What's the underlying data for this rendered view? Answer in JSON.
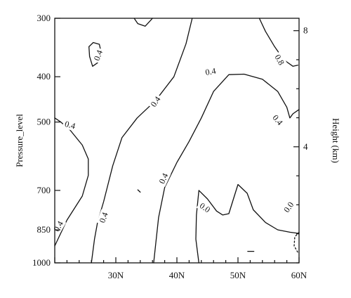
{
  "chart_data": {
    "type": "contour",
    "xlabel": "",
    "ylabel": "Pressure_level",
    "y2label": "Height (km)",
    "x_ticks": [
      "30N",
      "40N",
      "50N",
      "60N"
    ],
    "x_tick_values": [
      30,
      40,
      50,
      60
    ],
    "x_range": [
      20,
      60
    ],
    "y_ticks": [
      "300",
      "400",
      "500",
      "700",
      "850",
      "1000"
    ],
    "y_tick_values": [
      300,
      400,
      500,
      700,
      850,
      1000
    ],
    "y_range": [
      1000,
      300
    ],
    "y2_ticks": [
      "4",
      "8"
    ],
    "contour_levels": [
      "0.4",
      "0.8",
      "0.0"
    ],
    "contours": [
      {
        "name": "c-west-04",
        "level": "0.4",
        "points": [
          [
            20,
            490
          ],
          [
            21,
            500
          ],
          [
            22.5,
            520
          ],
          [
            24.5,
            560
          ],
          [
            25.5,
            600
          ],
          [
            25.5,
            650
          ],
          [
            24.5,
            720
          ],
          [
            22,
            810
          ],
          [
            20,
            920
          ]
        ]
      },
      {
        "name": "c-loop-04",
        "level": "0.4",
        "points": [
          [
            26.2,
            380
          ],
          [
            25.7,
            362
          ],
          [
            25.6,
            345
          ],
          [
            26.3,
            338
          ],
          [
            27.3,
            341
          ],
          [
            27.6,
            355
          ],
          [
            27.2,
            372
          ],
          [
            26.2,
            380
          ]
        ]
      },
      {
        "name": "c-top-left-04",
        "level": "0.4",
        "points": [
          [
            33,
            300
          ],
          [
            33.6,
            308
          ],
          [
            34.8,
            312
          ],
          [
            35.8,
            302
          ],
          [
            36,
            300
          ]
        ]
      },
      {
        "name": "c-west-mid-04",
        "level": "0.4",
        "points": [
          [
            26,
            1000
          ],
          [
            26.5,
            890
          ],
          [
            27,
            820
          ],
          [
            28,
            740
          ],
          [
            29.5,
            620
          ],
          [
            31,
            540
          ],
          [
            33.5,
            490
          ],
          [
            36.5,
            450
          ],
          [
            39.5,
            400
          ],
          [
            41.5,
            340
          ],
          [
            42.5,
            300
          ]
        ]
      },
      {
        "name": "c-arch-04",
        "level": "0.4",
        "points": [
          [
            36.2,
            1000
          ],
          [
            36.5,
            920
          ],
          [
            37,
            800
          ],
          [
            38,
            690
          ],
          [
            40,
            610
          ],
          [
            42,
            550
          ],
          [
            44,
            490
          ],
          [
            46,
            430
          ],
          [
            48.5,
            396
          ],
          [
            51,
            395
          ],
          [
            54,
            405
          ],
          [
            56.5,
            430
          ],
          [
            58,
            465
          ],
          [
            58.5,
            490
          ],
          [
            59,
            480
          ],
          [
            60,
            470
          ]
        ]
      },
      {
        "name": "c-right-08",
        "level": "0.8",
        "points": [
          [
            53.5,
            300
          ],
          [
            54.5,
            320
          ],
          [
            56,
            345
          ],
          [
            57.5,
            368
          ],
          [
            59,
            380
          ],
          [
            59.8,
            378
          ]
        ]
      },
      {
        "name": "c-mid-00",
        "level": "0.0",
        "points": [
          [
            43.6,
            1000
          ],
          [
            43.1,
            890
          ],
          [
            43.2,
            790
          ],
          [
            43.6,
            700
          ],
          [
            45,
            730
          ],
          [
            46.5,
            775
          ],
          [
            47.5,
            790
          ],
          [
            48.5,
            785
          ],
          [
            49.4,
            720
          ],
          [
            50,
            680
          ],
          [
            51.5,
            710
          ],
          [
            52.5,
            770
          ],
          [
            54.5,
            820
          ],
          [
            56.5,
            850
          ],
          [
            58.5,
            860
          ],
          [
            60,
            865
          ]
        ]
      },
      {
        "name": "c-speck-1",
        "level": "",
        "points": [
          [
            33.6,
            698
          ],
          [
            34,
            706
          ]
        ]
      },
      {
        "name": "c-speck-2",
        "level": "",
        "points": [
          [
            51.6,
            945
          ],
          [
            52.6,
            945
          ]
        ]
      },
      {
        "name": "c-dashed-neg",
        "level": "",
        "dashed": true,
        "points": [
          [
            60,
            860
          ],
          [
            59.3,
            880
          ],
          [
            59.2,
            920
          ],
          [
            59.8,
            950
          ],
          [
            60,
            955
          ]
        ]
      }
    ],
    "labels": [
      {
        "name": "label-04-a",
        "text": "0.4",
        "x": 27.1,
        "y": 360,
        "rotate": -70
      },
      {
        "name": "label-04-b",
        "text": "0.4",
        "x": 22.5,
        "y": 507,
        "rotate": 15
      },
      {
        "name": "label-04-c",
        "text": "0.4",
        "x": 20.6,
        "y": 835,
        "rotate": -60
      },
      {
        "name": "label-04-d",
        "text": "0.4",
        "x": 28.0,
        "y": 800,
        "rotate": -70
      },
      {
        "name": "label-04-e",
        "text": "0.4",
        "x": 36.5,
        "y": 452,
        "rotate": -55
      },
      {
        "name": "label-04-f",
        "text": "0.4",
        "x": 37.8,
        "y": 660,
        "rotate": -65
      },
      {
        "name": "label-04-g",
        "text": "0.4",
        "x": 45.5,
        "y": 390,
        "rotate": -10
      },
      {
        "name": "label-04-h",
        "text": "0.4",
        "x": 56.5,
        "y": 495,
        "rotate": 50
      },
      {
        "name": "label-08",
        "text": "0.8",
        "x": 56.8,
        "y": 368,
        "rotate": 60
      },
      {
        "name": "label-00-a",
        "text": "0.0",
        "x": 44.6,
        "y": 762,
        "rotate": 35
      },
      {
        "name": "label-00-b",
        "text": "0.0",
        "x": 58.3,
        "y": 760,
        "rotate": -55
      }
    ]
  }
}
